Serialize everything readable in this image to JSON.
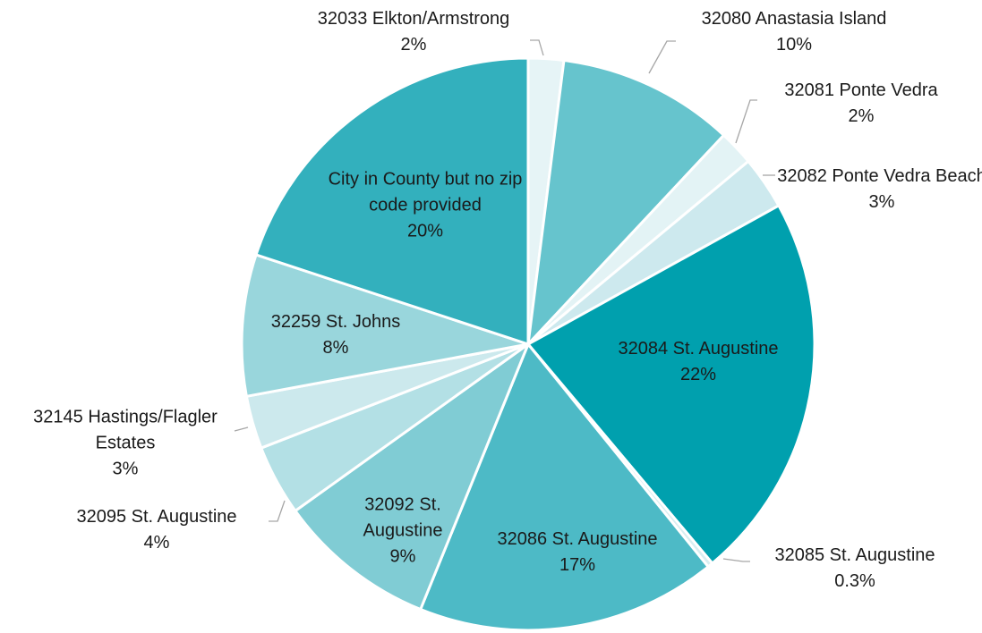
{
  "chart_data": {
    "type": "pie",
    "categories": [
      "32033 Elkton/Armstrong",
      "32080 Anastasia Island",
      "32081 Ponte Vedra",
      "32082 Ponte Vedra Beach",
      "32084 St. Augustine",
      "32085 St. Augustine",
      "32086 St. Augustine",
      "32092 St. Augustine",
      "32095 St. Augustine",
      "32145 Hastings/Flagler Estates",
      "32259 St. Johns",
      "City in County but no zip code provided"
    ],
    "values": [
      2,
      10,
      2,
      3,
      22,
      0.3,
      17,
      9,
      4,
      3,
      8,
      20
    ],
    "value_labels": [
      "2%",
      "10%",
      "2%",
      "3%",
      "22%",
      "0.3%",
      "17%",
      "9%",
      "4%",
      "3%",
      "8%",
      "20%"
    ],
    "colors": [
      "#e6f4f6",
      "#66c4cd",
      "#e3f3f5",
      "#cde9ee",
      "#00a0ae",
      "#d8eef1",
      "#4dbac6",
      "#80ccd4",
      "#b3e0e5",
      "#cce9ed",
      "#99d6dc",
      "#33b0bd"
    ]
  }
}
